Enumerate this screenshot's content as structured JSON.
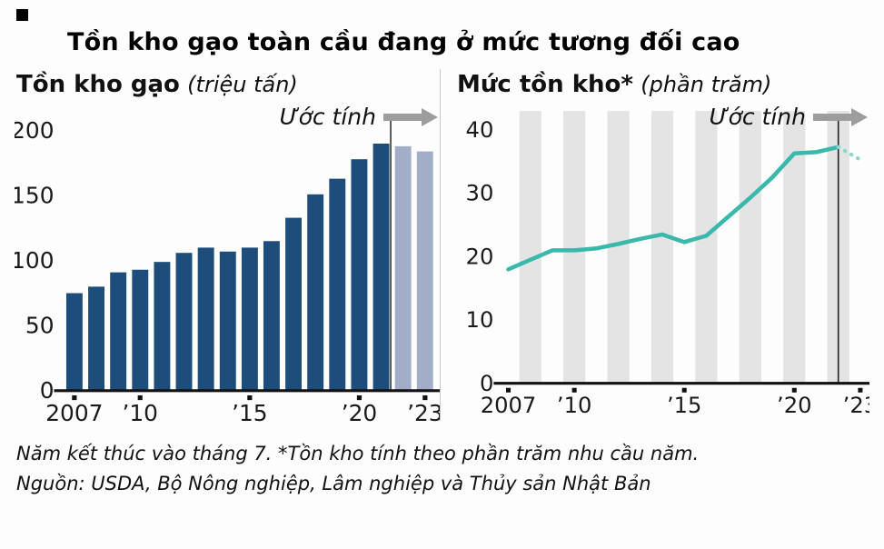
{
  "title": "Tồn kho gạo toàn cầu đang ở mức tương đối cao",
  "footer": {
    "note": "Năm kết thúc vào tháng 7. *Tồn kho tính theo phần trăm nhu cầu năm.",
    "source": "Nguồn: USDA, Bộ Nông nghiệp, Lâm nghiệp và Thủy sản Nhật Bản"
  },
  "colors": {
    "bar": "#1d4e7b",
    "bar_estimate": "#a2aec8",
    "line": "#3bb8ac",
    "line_estimate": "#8ed5cd",
    "stripe": "#e4e4e4",
    "arrow": "#9d9d9d",
    "axis": "#111111"
  },
  "chart_data": [
    {
      "type": "bar",
      "heading": "Tồn kho gạo",
      "unit": "(triệu tấn)",
      "estimate_label": "Ước tính",
      "x": [
        2007,
        2008,
        2009,
        2010,
        2011,
        2012,
        2013,
        2014,
        2015,
        2016,
        2017,
        2018,
        2019,
        2020,
        2021,
        2022,
        2023
      ],
      "values": [
        75,
        80,
        91,
        93,
        99,
        106,
        110,
        107,
        110,
        115,
        133,
        151,
        163,
        178,
        190,
        188,
        184
      ],
      "estimate_start_index": 15,
      "ylim": [
        0,
        215
      ],
      "yticks": [
        0,
        50,
        100,
        150,
        200
      ],
      "xticks": [
        {
          "index": 0,
          "label": "2007"
        },
        {
          "index": 3,
          "label": "’10"
        },
        {
          "index": 8,
          "label": "’15"
        },
        {
          "index": 13,
          "label": "’20"
        },
        {
          "index": 16,
          "label": "’23"
        }
      ],
      "color": "#1d4e7b",
      "estimate_color": "#a2aec8",
      "legend_position": "none",
      "grid": false
    },
    {
      "type": "line",
      "heading": "Mức tồn kho*",
      "unit": "(phần trăm)",
      "estimate_label": "Ước tính",
      "x": [
        2007,
        2008,
        2009,
        2010,
        2011,
        2012,
        2013,
        2014,
        2015,
        2016,
        2017,
        2018,
        2019,
        2020,
        2021,
        2022,
        2023
      ],
      "values": [
        18,
        19.5,
        21,
        21,
        21.3,
        22,
        22.8,
        23.5,
        22.3,
        23.3,
        26.3,
        29.3,
        32.5,
        36.3,
        36.5,
        37.3,
        35.3
      ],
      "estimate_start_index": 15,
      "ylim": [
        0,
        43
      ],
      "yticks": [
        0,
        10,
        20,
        30,
        40
      ],
      "xticks": [
        {
          "index": 0,
          "label": "2007"
        },
        {
          "index": 3,
          "label": "’10"
        },
        {
          "index": 8,
          "label": "’15"
        },
        {
          "index": 13,
          "label": "’20"
        },
        {
          "index": 16,
          "label": "’23"
        }
      ],
      "color": "#3bb8ac",
      "estimate_color": "#8ed5cd",
      "stripe_color": "#e4e4e4",
      "legend_position": "none",
      "grid": false
    }
  ]
}
